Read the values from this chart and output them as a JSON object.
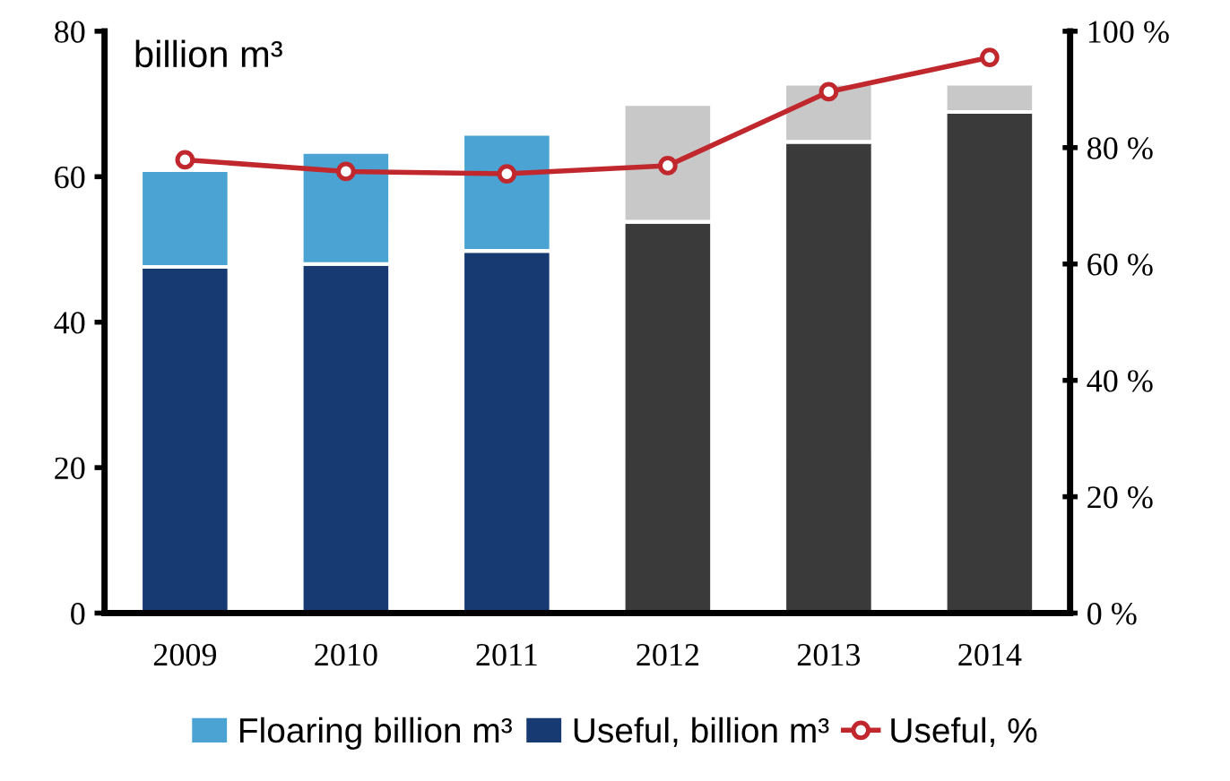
{
  "chart_data": {
    "type": "bar",
    "stacked": true,
    "ylabel": "billion m³",
    "categories": [
      "2009",
      "2010",
      "2011",
      "2012",
      "2013",
      "2014"
    ],
    "series": [
      {
        "name": "Useful, billion m³",
        "color": "#173a73",
        "colors": [
          "#173a73",
          "#173a73",
          "#173a73",
          "#3a3a3a",
          "#3a3a3a",
          "#3a3a3a"
        ],
        "values": [
          47.6,
          48.0,
          49.8,
          53.8,
          64.8,
          68.9
        ]
      },
      {
        "name": "Floaring billion m³",
        "color": "#4ba3d3",
        "colors": [
          "#4ba3d3",
          "#4ba3d3",
          "#4ba3d3",
          "#c8c8c8",
          "#c8c8c8",
          "#c8c8c8"
        ],
        "values": [
          13.3,
          15.4,
          16.1,
          16.2,
          8.0,
          3.9
        ]
      },
      {
        "name": "Useful, %",
        "type": "line",
        "axis": "y2",
        "color": "#c0282d",
        "marker": "circle",
        "values": [
          77.9,
          75.9,
          75.5,
          76.9,
          89.6,
          95.5
        ]
      }
    ],
    "ylim": [
      0,
      80
    ],
    "yticks": [
      0,
      20,
      40,
      60,
      80
    ],
    "y2lim": [
      0,
      100
    ],
    "y2ticks": [
      {
        "value": 0,
        "label": "0 %"
      },
      {
        "value": 20,
        "label": "20 %"
      },
      {
        "value": 40,
        "label": "40 %"
      },
      {
        "value": 60,
        "label": "60 %"
      },
      {
        "value": 80,
        "label": "80 %"
      },
      {
        "value": 100,
        "label": "100 %"
      }
    ],
    "legend": "bottom",
    "grid": false
  }
}
